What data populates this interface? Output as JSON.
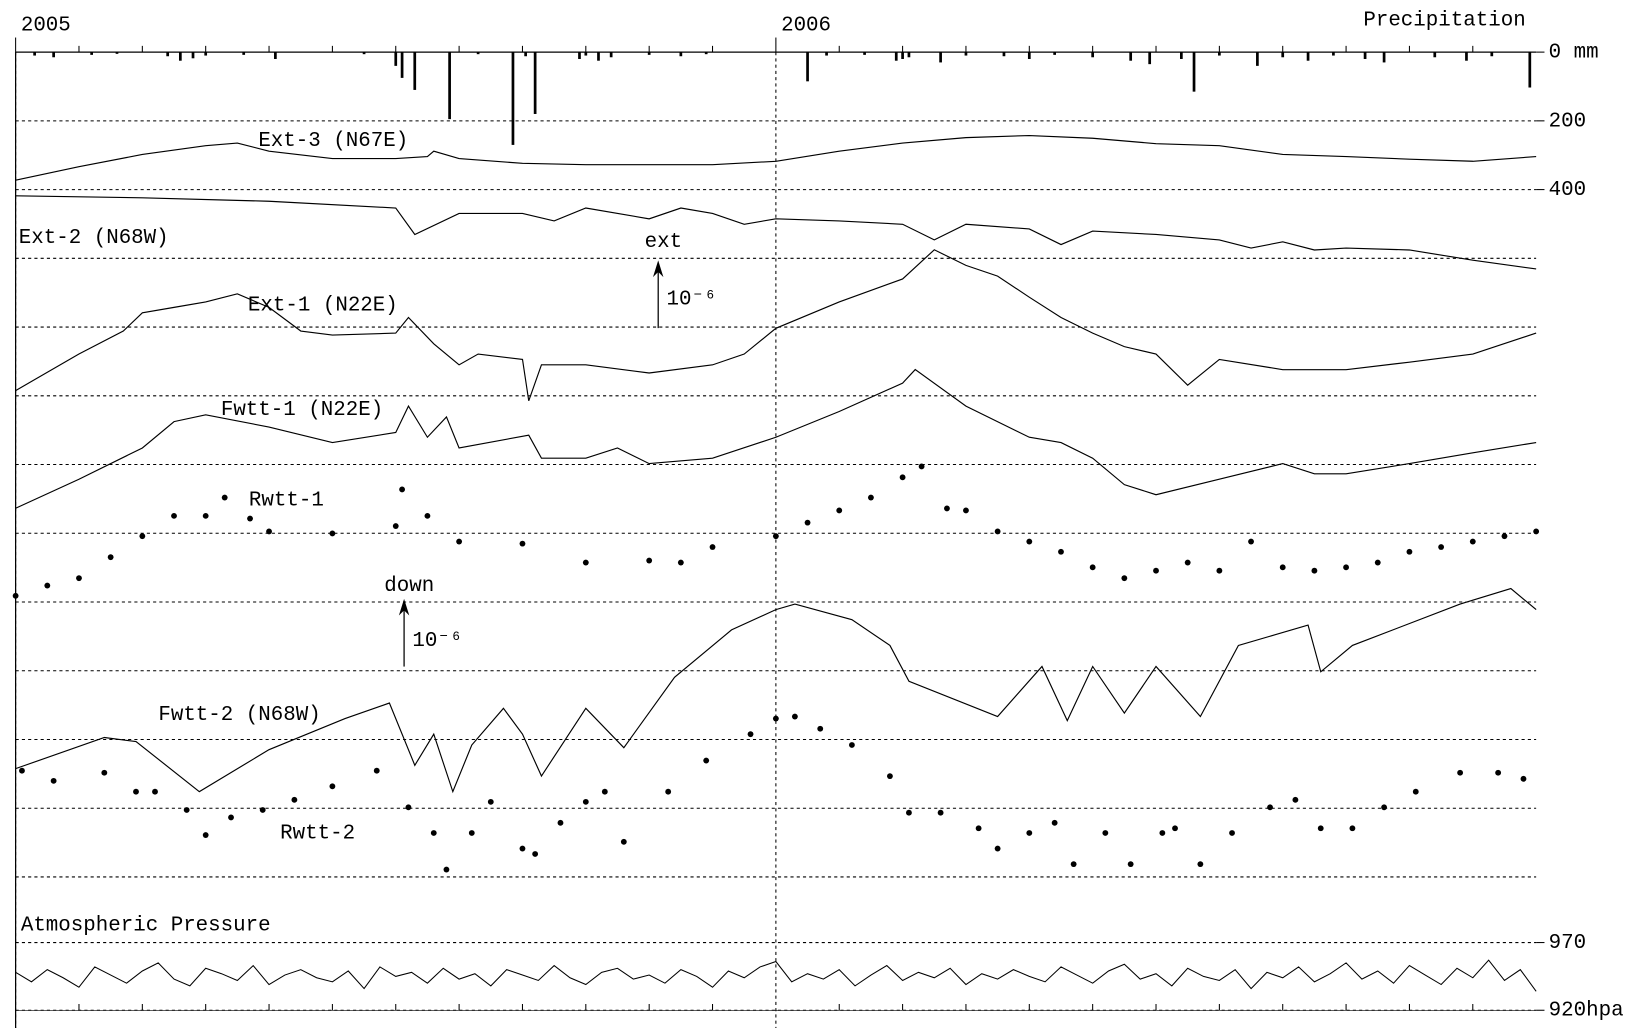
{
  "chart_data": [
    {
      "type": "bar",
      "title": "Precipitation",
      "color": "#000000",
      "xlim": [
        0,
        24
      ],
      "xticks": [
        {
          "value": 0,
          "label": "2005"
        },
        {
          "value": 12,
          "label": "2006"
        }
      ],
      "xminorticks": [
        1,
        2,
        3,
        4,
        5,
        6,
        7,
        8,
        9,
        10,
        11,
        13,
        14,
        15,
        16,
        17,
        18,
        19,
        20,
        21,
        22,
        23
      ],
      "ylim": [
        0,
        400
      ],
      "yticks": [
        {
          "value": 0,
          "label": "0 mm"
        },
        200,
        400
      ],
      "x": [
        0.3,
        0.6,
        1.2,
        1.6,
        2.4,
        2.6,
        2.8,
        3.0,
        3.6,
        4.1,
        5.5,
        6.0,
        6.1,
        6.3,
        6.85,
        7.3,
        7.85,
        8.05,
        8.2,
        8.9,
        9.0,
        9.2,
        9.4,
        10.0,
        10.5,
        10.9,
        12.5,
        12.8,
        13.4,
        13.9,
        14.0,
        14.1,
        14.6,
        15.0,
        15.6,
        16.0,
        16.4,
        17.0,
        17.6,
        17.9,
        18.4,
        18.6,
        19.0,
        19.6,
        20.0,
        20.4,
        20.8,
        21.3,
        21.6,
        22.4,
        22.9,
        23.3,
        23.9
      ],
      "values": [
        10,
        15,
        8,
        5,
        12,
        25,
        18,
        10,
        8,
        20,
        6,
        40,
        75,
        110,
        195,
        6,
        270,
        12,
        180,
        20,
        10,
        25,
        15,
        8,
        12,
        6,
        85,
        10,
        8,
        25,
        20,
        15,
        30,
        10,
        12,
        20,
        8,
        15,
        25,
        35,
        20,
        115,
        10,
        40,
        15,
        25,
        10,
        20,
        30,
        15,
        25,
        12,
        103
      ]
    },
    {
      "type": "line",
      "color": "#000000",
      "scale_bars": [
        {
          "label": "ext",
          "unit_label": "10⁻⁶",
          "value": 1
        },
        {
          "label": "down",
          "unit_label": "10⁻⁶",
          "value": 1
        }
      ],
      "series": [
        {
          "name": "Ext-3 (N67E)",
          "style": "line",
          "x": [
            0,
            1,
            2,
            3,
            3.5,
            4,
            5,
            6,
            6.5,
            6.6,
            7,
            8,
            9,
            10,
            11,
            12,
            13,
            14,
            15,
            16,
            17,
            18,
            19,
            20,
            21,
            22,
            23,
            24
          ],
          "values": [
            0,
            0.2,
            0.38,
            0.51,
            0.55,
            0.43,
            0.32,
            0.32,
            0.35,
            0.43,
            0.32,
            0.25,
            0.23,
            0.23,
            0.23,
            0.28,
            0.43,
            0.55,
            0.63,
            0.66,
            0.62,
            0.54,
            0.51,
            0.38,
            0.35,
            0.31,
            0.28,
            0.35
          ]
        },
        {
          "name": "Ext-2 (N68W)",
          "style": "line",
          "x": [
            0,
            2,
            4,
            6,
            6.3,
            7,
            8,
            8.5,
            9,
            10,
            10.5,
            11,
            11.5,
            12,
            13,
            14,
            14.5,
            15,
            16,
            16.5,
            17,
            18,
            19,
            19.5,
            20,
            20.5,
            21,
            22,
            23,
            24
          ],
          "values": [
            0,
            -0.03,
            -0.08,
            -0.18,
            -0.57,
            -0.26,
            -0.26,
            -0.37,
            -0.18,
            -0.34,
            -0.18,
            -0.26,
            -0.42,
            -0.34,
            -0.37,
            -0.42,
            -0.65,
            -0.42,
            -0.49,
            -0.72,
            -0.52,
            -0.57,
            -0.65,
            -0.77,
            -0.68,
            -0.8,
            -0.77,
            -0.8,
            -0.95,
            -1.08
          ]
        },
        {
          "name": "Ext-1 (N22E)",
          "style": "line",
          "x": [
            0,
            1,
            1.7,
            2,
            2.5,
            3,
            3.5,
            4,
            4.5,
            5,
            6,
            6.2,
            6.6,
            7,
            7.3,
            8,
            8.1,
            8.3,
            9,
            10,
            11,
            11.5,
            12,
            13,
            14,
            14.5,
            15,
            15.5,
            16,
            16.5,
            17,
            17.5,
            18,
            18.5,
            19,
            20,
            21,
            22,
            23,
            24
          ],
          "values": [
            0,
            0.54,
            0.88,
            1.15,
            1.23,
            1.31,
            1.43,
            1.23,
            0.88,
            0.82,
            0.85,
            1.08,
            0.69,
            0.38,
            0.54,
            0.46,
            -0.15,
            0.38,
            0.38,
            0.26,
            0.38,
            0.54,
            0.92,
            1.31,
            1.65,
            2.08,
            1.85,
            1.69,
            1.38,
            1.08,
            0.85,
            0.65,
            0.54,
            0.08,
            0.46,
            0.31,
            0.31,
            0.42,
            0.54,
            0.85
          ]
        },
        {
          "name": "Fwtt-1 (N22E)",
          "style": "line",
          "x": [
            0,
            1,
            2,
            2.5,
            3,
            4,
            5,
            6,
            6.2,
            6.5,
            6.8,
            7,
            8.1,
            8.3,
            9,
            9.5,
            10,
            11,
            12,
            13,
            14,
            14.2,
            15,
            16,
            16.5,
            17,
            17.5,
            18,
            19,
            20,
            20.5,
            21,
            22,
            23,
            24
          ],
          "values": [
            0,
            0.43,
            0.89,
            1.28,
            1.38,
            1.2,
            0.97,
            1.12,
            1.51,
            1.05,
            1.35,
            0.89,
            1.08,
            0.74,
            0.74,
            0.89,
            0.66,
            0.74,
            1.05,
            1.43,
            1.85,
            2.05,
            1.51,
            1.05,
            0.97,
            0.74,
            0.35,
            0.2,
            0.43,
            0.66,
            0.51,
            0.51,
            0.66,
            0.82,
            0.97
          ]
        },
        {
          "name": "Rwtt-1",
          "style": "dots",
          "x": [
            0,
            0.5,
            1,
            1.5,
            2,
            2.5,
            3,
            3.3,
            3.7,
            4,
            5,
            6,
            6.1,
            6.5,
            7,
            8,
            9,
            10,
            10.5,
            11,
            12,
            12.5,
            13,
            13.5,
            14,
            14.3,
            14.7,
            15,
            15.5,
            16,
            16.5,
            17,
            17.5,
            18,
            18.5,
            19,
            19.5,
            20,
            20.5,
            21,
            21.5,
            22,
            22.5,
            23,
            23.5,
            24
          ],
          "values": [
            0,
            0.15,
            0.26,
            0.57,
            0.88,
            1.18,
            1.18,
            1.45,
            1.14,
            0.95,
            0.92,
            1.03,
            1.57,
            1.18,
            0.8,
            0.77,
            0.49,
            0.52,
            0.49,
            0.72,
            0.88,
            1.08,
            1.26,
            1.45,
            1.75,
            1.91,
            1.29,
            1.26,
            0.95,
            0.8,
            0.65,
            0.42,
            0.26,
            0.37,
            0.49,
            0.37,
            0.8,
            0.42,
            0.37,
            0.42,
            0.49,
            0.65,
            0.72,
            0.8,
            0.88,
            0.95
          ]
        },
        {
          "name": "Fwtt-2 (N68W)",
          "style": "line",
          "x": [
            0,
            1.4,
            1.9,
            2.9,
            4.0,
            5.2,
            5.9,
            6.3,
            6.6,
            6.9,
            7.2,
            7.7,
            8.0,
            8.3,
            9.0,
            9.6,
            10.4,
            11.3,
            12.0,
            12.3,
            13.2,
            13.8,
            14.1,
            15.5,
            16.2,
            16.6,
            17.0,
            17.5,
            18.0,
            18.7,
            19.3,
            20.4,
            20.6,
            21.1,
            22.8,
            23.6,
            24.0
          ],
          "values": [
            0,
            0.46,
            0.4,
            -0.34,
            0.28,
            0.74,
            0.97,
            0.05,
            0.51,
            -0.34,
            0.35,
            0.89,
            0.51,
            -0.11,
            0.89,
            0.31,
            1.35,
            2.05,
            2.35,
            2.43,
            2.2,
            1.82,
            1.29,
            0.77,
            1.51,
            0.71,
            1.51,
            0.82,
            1.51,
            0.77,
            1.82,
            2.12,
            1.43,
            1.82,
            2.43,
            2.66,
            2.35
          ]
        },
        {
          "name": "Rwtt-2",
          "style": "dots",
          "x": [
            0.1,
            0.6,
            1.4,
            1.9,
            2.2,
            2.7,
            3.0,
            3.4,
            3.9,
            4.4,
            5.0,
            5.7,
            6.2,
            6.6,
            6.8,
            7.2,
            7.5,
            8.0,
            8.2,
            8.6,
            9.0,
            9.3,
            9.6,
            10.3,
            10.9,
            11.6,
            12.0,
            12.3,
            12.7,
            13.2,
            13.8,
            14.1,
            14.6,
            15.2,
            15.5,
            16.0,
            16.4,
            16.7,
            17.2,
            17.6,
            18.1,
            18.3,
            18.7,
            19.2,
            19.8,
            20.2,
            20.6,
            21.1,
            21.6,
            22.1,
            22.8,
            23.4,
            23.8
          ],
          "values": [
            0,
            -0.15,
            -0.03,
            -0.31,
            -0.31,
            -0.58,
            -0.95,
            -0.69,
            -0.58,
            -0.43,
            -0.23,
            0,
            -0.54,
            -0.92,
            -1.46,
            -0.92,
            -0.46,
            -1.15,
            -1.23,
            -0.77,
            -0.46,
            -0.31,
            -1.05,
            -0.31,
            0.15,
            0.54,
            0.77,
            0.8,
            0.62,
            0.38,
            -0.08,
            -0.62,
            -0.62,
            -0.85,
            -1.15,
            -0.92,
            -0.77,
            -1.38,
            -0.92,
            -1.38,
            -0.92,
            -0.85,
            -1.38,
            -0.92,
            -0.54,
            -0.43,
            -0.85,
            -0.85,
            -0.54,
            -0.31,
            -0.03,
            -0.03,
            -0.12
          ]
        }
      ]
    },
    {
      "type": "line",
      "title": "Atmospheric Pressure",
      "color": "#000000",
      "ylim": [
        920,
        970
      ],
      "yticks": [
        970,
        {
          "value": 920,
          "label": "920hpa"
        }
      ],
      "x": [
        0,
        0.25,
        0.5,
        0.75,
        1,
        1.25,
        1.5,
        1.75,
        2,
        2.25,
        2.5,
        2.75,
        3,
        3.25,
        3.5,
        3.75,
        4,
        4.25,
        4.5,
        4.75,
        5,
        5.25,
        5.5,
        5.75,
        6,
        6.25,
        6.5,
        6.75,
        7,
        7.25,
        7.5,
        7.75,
        8,
        8.25,
        8.5,
        8.75,
        9,
        9.25,
        9.5,
        9.75,
        10,
        10.25,
        10.5,
        10.75,
        11,
        11.25,
        11.5,
        11.75,
        12,
        12.25,
        12.5,
        12.75,
        13,
        13.25,
        13.5,
        13.75,
        14,
        14.25,
        14.5,
        14.75,
        15,
        15.25,
        15.5,
        15.75,
        16,
        16.25,
        16.5,
        16.75,
        17,
        17.25,
        17.5,
        17.75,
        18,
        18.25,
        18.5,
        18.75,
        19,
        19.25,
        19.5,
        19.75,
        20,
        20.25,
        20.5,
        20.75,
        21,
        21.25,
        21.5,
        21.75,
        22,
        22.25,
        22.5,
        22.75,
        23,
        23.25,
        23.5,
        23.75,
        24
      ],
      "values": [
        948,
        941,
        950,
        944,
        937,
        952,
        946,
        940,
        949,
        955,
        943,
        938,
        951,
        947,
        942,
        953,
        939,
        946,
        950,
        944,
        941,
        949,
        936,
        952,
        945,
        948,
        940,
        951,
        943,
        947,
        938,
        950,
        946,
        942,
        953,
        944,
        939,
        948,
        951,
        943,
        946,
        940,
        950,
        945,
        937,
        949,
        944,
        952,
        956,
        941,
        947,
        943,
        950,
        938,
        946,
        953,
        942,
        948,
        944,
        951,
        939,
        947,
        943,
        950,
        945,
        941,
        952,
        946,
        940,
        949,
        954,
        943,
        947,
        938,
        951,
        945,
        942,
        950,
        936,
        948,
        944,
        952,
        941,
        947,
        955,
        943,
        949,
        940,
        953,
        946,
        939,
        951,
        944,
        957,
        942,
        950,
        934
      ]
    }
  ]
}
